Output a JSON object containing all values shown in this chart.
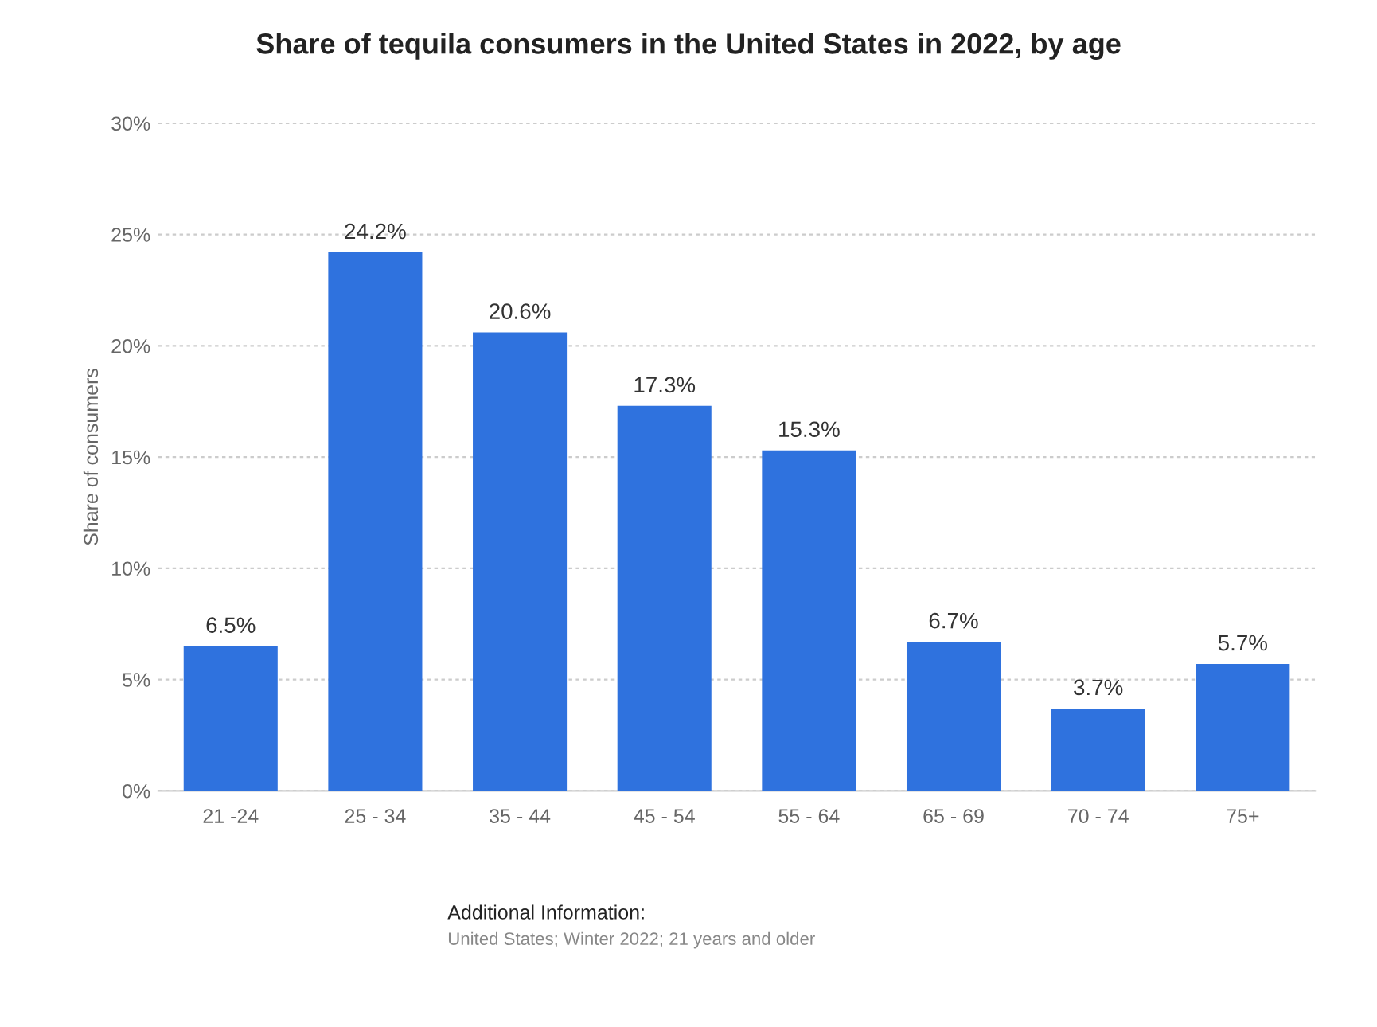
{
  "chart_data": {
    "type": "bar",
    "title": "Share of tequila consumers in the United States in 2022, by age",
    "ylabel": "Share of consumers",
    "categories": [
      "21 -24",
      "25 - 34",
      "35 - 44",
      "45 - 54",
      "55 - 64",
      "65 - 69",
      "70 - 74",
      "75+"
    ],
    "values": [
      6.5,
      24.2,
      20.6,
      17.3,
      15.3,
      6.7,
      3.7,
      5.7
    ],
    "value_labels": [
      "6.5%",
      "24.2%",
      "20.6%",
      "17.3%",
      "15.3%",
      "6.7%",
      "3.7%",
      "5.7%"
    ],
    "color": "#2f72de",
    "ylim": [
      0,
      30
    ],
    "yticks": [
      {
        "value": 0,
        "label": "0%"
      },
      {
        "value": 5,
        "label": "5%"
      },
      {
        "value": 10,
        "label": "10%"
      },
      {
        "value": 15,
        "label": "15%"
      },
      {
        "value": 20,
        "label": "20%"
      },
      {
        "value": 25,
        "label": "25%"
      },
      {
        "value": 30,
        "label": "30%"
      }
    ],
    "grid": "y",
    "annotations": [
      "Additional Information:",
      "United States; Winter 2022; 21 years and older"
    ]
  }
}
